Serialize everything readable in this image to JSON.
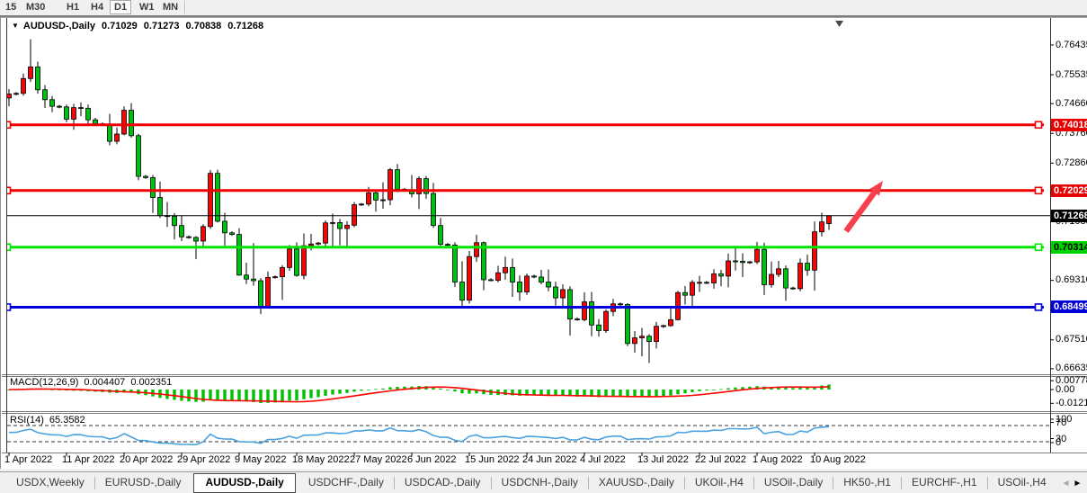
{
  "toolbar": {
    "timeframes": [
      {
        "label": "15",
        "active": false
      },
      {
        "label": "M30",
        "active": false
      },
      {
        "label": "H1",
        "active": false
      },
      {
        "label": "H4",
        "active": false
      },
      {
        "label": "D1",
        "active": true
      },
      {
        "label": "W1",
        "active": false
      },
      {
        "label": "MN",
        "active": false
      }
    ]
  },
  "chart": {
    "header": {
      "dropdown_icon": "▼",
      "symbol": "AUDUSD-,Daily",
      "open": "0.71029",
      "high": "0.71273",
      "low": "0.70838",
      "close": "0.71268"
    },
    "colors": {
      "bull": "#ee0a0a",
      "bear": "#00be14",
      "wick": "#000000",
      "hline_red": "#f00000",
      "hline_green": "#00e400",
      "hline_blue": "#0000dd",
      "price_line": "#000000",
      "macd_hist": "#00c000",
      "macd_signal": "#ff0000",
      "rsi_line": "#4aa2e0",
      "rsi_level": "#333333",
      "arrow": "#f6404b"
    },
    "y_axis": {
      "ticks": [
        "0.76435",
        "0.75535",
        "0.74660",
        "0.73760",
        "0.72860",
        "0.71960",
        "0.71085",
        "0.70185",
        "0.69310",
        "0.68410",
        "0.67510",
        "0.66635"
      ]
    },
    "badges": [
      {
        "price": 0.74018,
        "label": "0.74018",
        "bg": "#e80000",
        "fg": "#ffffff",
        "name": "price-badge-resistance-1"
      },
      {
        "price": 0.72029,
        "label": "0.72029",
        "bg": "#e80000",
        "fg": "#ffffff",
        "name": "price-badge-resistance-2"
      },
      {
        "price": 0.71268,
        "label": "0.71268",
        "bg": "#000000",
        "fg": "#ffffff",
        "name": "price-badge-current"
      },
      {
        "price": 0.70314,
        "label": "0.70314",
        "bg": "#00d200",
        "fg": "#000000",
        "name": "price-badge-support-green"
      },
      {
        "price": 0.68499,
        "label": "0.68499",
        "bg": "#0000d8",
        "fg": "#ffffff",
        "name": "price-badge-support-blue"
      }
    ],
    "hlines": [
      {
        "price": 0.74018,
        "color": "#f00000",
        "name": "resistance-line-1"
      },
      {
        "price": 0.72029,
        "color": "#f00000",
        "name": "resistance-line-2"
      },
      {
        "price": 0.70314,
        "color": "#00e400",
        "name": "support-line-green"
      },
      {
        "price": 0.68499,
        "color": "#0000dd",
        "name": "support-line-blue"
      }
    ],
    "price_line": {
      "price": 0.71268
    },
    "x_axis": [
      {
        "text": "1 Apr 2022",
        "i": 0
      },
      {
        "text": "11 Apr 2022",
        "i": 8
      },
      {
        "text": "20 Apr 2022",
        "i": 16
      },
      {
        "text": "29 Apr 2022",
        "i": 24
      },
      {
        "text": "9 May 2022",
        "i": 32
      },
      {
        "text": "18 May 2022",
        "i": 40
      },
      {
        "text": "27 May 2022",
        "i": 48
      },
      {
        "text": "6 Jun 2022",
        "i": 56
      },
      {
        "text": "15 Jun 2022",
        "i": 64
      },
      {
        "text": "24 Jun 2022",
        "i": 72
      },
      {
        "text": "4 Jul 2022",
        "i": 80
      },
      {
        "text": "13 Jul 2022",
        "i": 88
      },
      {
        "text": "22 Jul 2022",
        "i": 96
      },
      {
        "text": "1 Aug 2022",
        "i": 104
      },
      {
        "text": "10 Aug 2022",
        "i": 112
      }
    ],
    "candles": [
      [
        0.7483,
        0.751,
        0.7458,
        0.7495
      ],
      [
        0.7495,
        0.7501,
        0.7491,
        0.7497
      ],
      [
        0.7497,
        0.7557,
        0.749,
        0.7542
      ],
      [
        0.7542,
        0.7661,
        0.7532,
        0.7577
      ],
      [
        0.7577,
        0.7593,
        0.7496,
        0.7508
      ],
      [
        0.7508,
        0.7522,
        0.7453,
        0.7478
      ],
      [
        0.7478,
        0.7489,
        0.744,
        0.7458
      ],
      [
        0.7458,
        0.7462,
        0.7452,
        0.7456
      ],
      [
        0.7456,
        0.7463,
        0.741,
        0.7419
      ],
      [
        0.7419,
        0.7465,
        0.7387,
        0.7454
      ],
      [
        0.7454,
        0.747,
        0.7428,
        0.7452
      ],
      [
        0.7452,
        0.7463,
        0.7398,
        0.7417
      ],
      [
        0.7417,
        0.7423,
        0.7398,
        0.7405
      ],
      [
        0.7405,
        0.7409,
        0.7399,
        0.7403
      ],
      [
        0.7403,
        0.7435,
        0.734,
        0.7352
      ],
      [
        0.7352,
        0.7394,
        0.7343,
        0.7374
      ],
      [
        0.7374,
        0.7458,
        0.737,
        0.7446
      ],
      [
        0.7446,
        0.7468,
        0.7363,
        0.7369
      ],
      [
        0.7369,
        0.7375,
        0.7234,
        0.7246
      ],
      [
        0.7246,
        0.725,
        0.7238,
        0.7242
      ],
      [
        0.7242,
        0.725,
        0.7135,
        0.7182
      ],
      [
        0.7182,
        0.723,
        0.712,
        0.7127
      ],
      [
        0.7127,
        0.7168,
        0.7093,
        0.7125
      ],
      [
        0.7125,
        0.7135,
        0.7055,
        0.7097
      ],
      [
        0.7097,
        0.7128,
        0.705,
        0.7063
      ],
      [
        0.7063,
        0.7067,
        0.7057,
        0.7061
      ],
      [
        0.7061,
        0.7065,
        0.6995,
        0.705
      ],
      [
        0.705,
        0.7101,
        0.7029,
        0.7094
      ],
      [
        0.7094,
        0.7265,
        0.7087,
        0.7255
      ],
      [
        0.7255,
        0.7266,
        0.7106,
        0.711
      ],
      [
        0.711,
        0.7136,
        0.7036,
        0.7075
      ],
      [
        0.7075,
        0.7079,
        0.7066,
        0.707
      ],
      [
        0.707,
        0.7089,
        0.6945,
        0.6947
      ],
      [
        0.6947,
        0.6985,
        0.692,
        0.6935
      ],
      [
        0.6935,
        0.7044,
        0.6915,
        0.693
      ],
      [
        0.693,
        0.6938,
        0.6829,
        0.685
      ],
      [
        0.685,
        0.6958,
        0.6848,
        0.694
      ],
      [
        0.694,
        0.6946,
        0.6936,
        0.6942
      ],
      [
        0.6942,
        0.6977,
        0.6872,
        0.697
      ],
      [
        0.697,
        0.7038,
        0.696,
        0.7026
      ],
      [
        0.7026,
        0.7046,
        0.6942,
        0.6946
      ],
      [
        0.6946,
        0.7073,
        0.6934,
        0.7036
      ],
      [
        0.7036,
        0.7072,
        0.7022,
        0.7041
      ],
      [
        0.7041,
        0.7047,
        0.7037,
        0.7044
      ],
      [
        0.7044,
        0.7113,
        0.7035,
        0.7105
      ],
      [
        0.7105,
        0.7133,
        0.7033,
        0.7106
      ],
      [
        0.7106,
        0.7117,
        0.7037,
        0.7088
      ],
      [
        0.7088,
        0.711,
        0.7034,
        0.7098
      ],
      [
        0.7098,
        0.7168,
        0.7092,
        0.716
      ],
      [
        0.716,
        0.7165,
        0.7156,
        0.7162
      ],
      [
        0.7162,
        0.7214,
        0.7155,
        0.7196
      ],
      [
        0.7196,
        0.7203,
        0.7139,
        0.7174
      ],
      [
        0.7174,
        0.7228,
        0.7148,
        0.7175
      ],
      [
        0.7175,
        0.7271,
        0.7158,
        0.7266
      ],
      [
        0.7266,
        0.7283,
        0.7198,
        0.7207
      ],
      [
        0.7207,
        0.7211,
        0.7201,
        0.7205
      ],
      [
        0.7205,
        0.725,
        0.7182,
        0.7193
      ],
      [
        0.7193,
        0.7246,
        0.7147,
        0.7239
      ],
      [
        0.7239,
        0.7247,
        0.7178,
        0.7194
      ],
      [
        0.7194,
        0.7226,
        0.709,
        0.7097
      ],
      [
        0.7097,
        0.712,
        0.7032,
        0.704
      ],
      [
        0.704,
        0.7044,
        0.7034,
        0.7038
      ],
      [
        0.7038,
        0.7046,
        0.6911,
        0.6926
      ],
      [
        0.6926,
        0.6989,
        0.685,
        0.6871
      ],
      [
        0.6871,
        0.702,
        0.6861,
        0.7003
      ],
      [
        0.7003,
        0.7069,
        0.6987,
        0.7045
      ],
      [
        0.7045,
        0.7049,
        0.6901,
        0.6933
      ],
      [
        0.6933,
        0.6938,
        0.6928,
        0.6931
      ],
      [
        0.6931,
        0.6975,
        0.6925,
        0.6954
      ],
      [
        0.6954,
        0.7003,
        0.6933,
        0.697
      ],
      [
        0.697,
        0.6997,
        0.6881,
        0.6926
      ],
      [
        0.6926,
        0.6946,
        0.6869,
        0.6896
      ],
      [
        0.6896,
        0.6952,
        0.6887,
        0.6944
      ],
      [
        0.6944,
        0.6948,
        0.6938,
        0.6941
      ],
      [
        0.6941,
        0.6963,
        0.6919,
        0.6926
      ],
      [
        0.6926,
        0.6964,
        0.6898,
        0.6911
      ],
      [
        0.6911,
        0.6927,
        0.6855,
        0.6878
      ],
      [
        0.6878,
        0.6919,
        0.685,
        0.6903
      ],
      [
        0.6903,
        0.6913,
        0.6764,
        0.6814
      ],
      [
        0.6814,
        0.6819,
        0.6809,
        0.6812
      ],
      [
        0.6812,
        0.6895,
        0.6807,
        0.6866
      ],
      [
        0.6866,
        0.6896,
        0.6762,
        0.6796
      ],
      [
        0.6796,
        0.6814,
        0.6761,
        0.6779
      ],
      [
        0.6779,
        0.6843,
        0.6772,
        0.6837
      ],
      [
        0.6837,
        0.6875,
        0.6823,
        0.686
      ],
      [
        0.686,
        0.6864,
        0.6854,
        0.6858
      ],
      [
        0.6858,
        0.6862,
        0.6732,
        0.674
      ],
      [
        0.674,
        0.6778,
        0.6712,
        0.6757
      ],
      [
        0.6757,
        0.6787,
        0.6701,
        0.6762
      ],
      [
        0.6762,
        0.6768,
        0.6681,
        0.6746
      ],
      [
        0.6746,
        0.6805,
        0.6725,
        0.6792
      ],
      [
        0.6792,
        0.6797,
        0.6787,
        0.6794
      ],
      [
        0.6794,
        0.6854,
        0.6791,
        0.6812
      ],
      [
        0.6812,
        0.6899,
        0.681,
        0.6894
      ],
      [
        0.6894,
        0.6914,
        0.6858,
        0.6886
      ],
      [
        0.6886,
        0.6932,
        0.6851,
        0.6925
      ],
      [
        0.6925,
        0.6945,
        0.6896,
        0.6925
      ],
      [
        0.6925,
        0.6929,
        0.692,
        0.6923
      ],
      [
        0.6923,
        0.6965,
        0.6906,
        0.6951
      ],
      [
        0.6951,
        0.6963,
        0.6913,
        0.6944
      ],
      [
        0.6944,
        0.7012,
        0.691,
        0.699
      ],
      [
        0.699,
        0.7033,
        0.6961,
        0.6989
      ],
      [
        0.6989,
        0.7013,
        0.6941,
        0.6985
      ],
      [
        0.6985,
        0.699,
        0.6981,
        0.6987
      ],
      [
        0.6987,
        0.7047,
        0.698,
        0.7025
      ],
      [
        0.7025,
        0.7045,
        0.6887,
        0.6918
      ],
      [
        0.6918,
        0.6988,
        0.6909,
        0.6949
      ],
      [
        0.6949,
        0.699,
        0.6941,
        0.6966
      ],
      [
        0.6966,
        0.6976,
        0.6869,
        0.6908
      ],
      [
        0.6908,
        0.6912,
        0.6903,
        0.6906
      ],
      [
        0.6906,
        0.6997,
        0.6898,
        0.6983
      ],
      [
        0.6983,
        0.7009,
        0.6945,
        0.6962
      ],
      [
        0.6962,
        0.7109,
        0.69,
        0.7078
      ],
      [
        0.7078,
        0.7136,
        0.7064,
        0.7108
      ],
      [
        0.71029,
        0.71273,
        0.70838,
        0.71268
      ]
    ]
  },
  "macd_pane": {
    "name": "MACD(12,26,9)",
    "value": "0.004407",
    "signal": "0.002351",
    "params": {
      "fast": 12,
      "slow": 26,
      "signal": 9
    },
    "axis": [
      {
        "label": "0.00778",
        "v": 0.00778
      },
      {
        "label": "0.00",
        "v": 0
      },
      {
        "label": "-0.01210",
        "v": -0.0121
      }
    ]
  },
  "rsi_pane": {
    "name": "RSI(14)",
    "value": "65.3582",
    "period": 14,
    "levels": [
      70,
      30
    ],
    "axis": [
      {
        "label": "100",
        "v": 100
      },
      {
        "label": "70",
        "v": 70
      },
      {
        "label": "30",
        "v": 30
      },
      {
        "label": "0",
        "v": 0
      }
    ]
  },
  "tabs": {
    "items": [
      {
        "label": "USDX,Weekly",
        "active": false
      },
      {
        "label": "EURUSD-,Daily",
        "active": false
      },
      {
        "label": "AUDUSD-,Daily",
        "active": true
      },
      {
        "label": "USDCHF-,Daily",
        "active": false
      },
      {
        "label": "USDCAD-,Daily",
        "active": false
      },
      {
        "label": "USDCNH-,Daily",
        "active": false
      },
      {
        "label": "XAUUSD-,Daily",
        "active": false
      },
      {
        "label": "UKOil-,H4",
        "active": false
      },
      {
        "label": "USOil-,Daily",
        "active": false
      },
      {
        "label": "HK50-,H1",
        "active": false
      },
      {
        "label": "EURCHF-,H1",
        "active": false
      },
      {
        "label": "USOil-,H4",
        "active": false
      }
    ],
    "scroll_left": "◄",
    "scroll_right": "►"
  }
}
